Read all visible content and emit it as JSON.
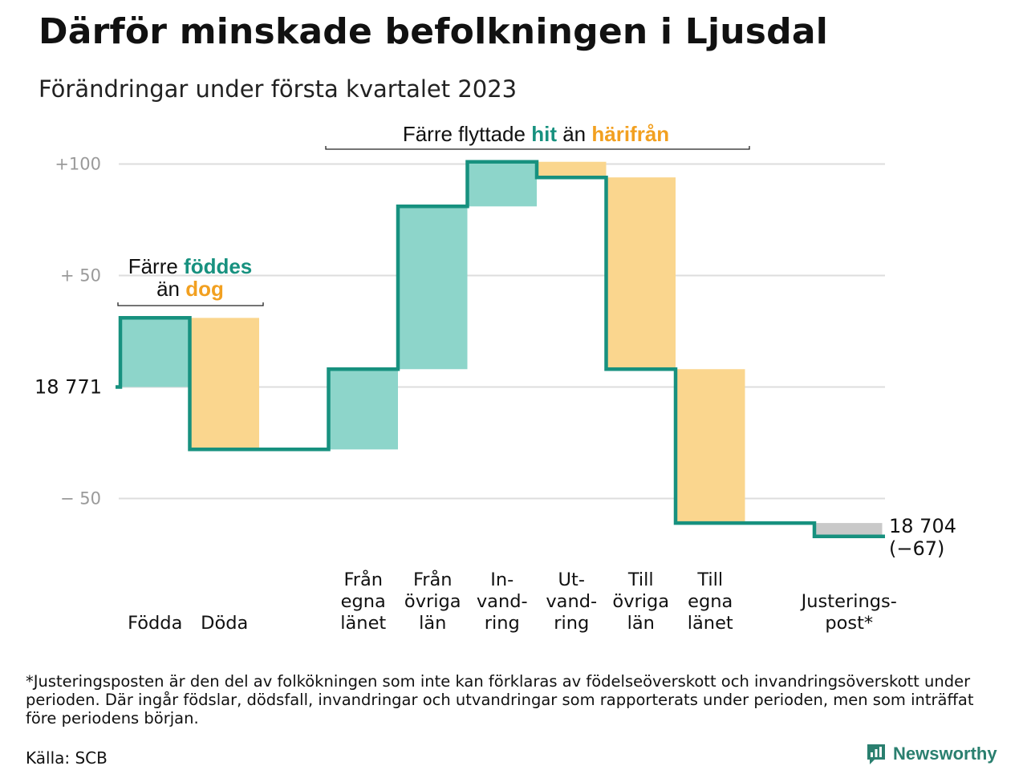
{
  "title": "Därför minskade befolkningen i Ljusdal",
  "subtitle": "Förändringar under första kvartalet 2023",
  "chart_data": {
    "type": "waterfall",
    "start_label": "18 771",
    "end_label": "18 704",
    "end_change_label": "(−67)",
    "ylim": [
      -78,
      108
    ],
    "y_ticks": [
      {
        "value": 100,
        "label": "+100"
      },
      {
        "value": 50,
        "label": "+ 50"
      },
      {
        "value": 0,
        "label": ""
      },
      {
        "value": -50,
        "label": "− 50"
      }
    ],
    "steps": [
      {
        "lines": [
          "Födda"
        ],
        "value": 31,
        "kind": "in"
      },
      {
        "lines": [
          "Döda"
        ],
        "value": -59,
        "kind": "out"
      },
      {
        "lines": [],
        "value": 0,
        "kind": "none"
      },
      {
        "lines": [
          "Från",
          "egna",
          "länet"
        ],
        "value": 36,
        "kind": "in"
      },
      {
        "lines": [
          "Från",
          "övriga",
          "län"
        ],
        "value": 73,
        "kind": "in"
      },
      {
        "lines": [
          "In-",
          "vand-",
          "ring"
        ],
        "value": 20,
        "kind": "in"
      },
      {
        "lines": [
          "Ut-",
          "vand-",
          "ring"
        ],
        "value": -7,
        "kind": "out"
      },
      {
        "lines": [
          "Till",
          "övriga",
          "län"
        ],
        "value": -86,
        "kind": "out"
      },
      {
        "lines": [
          "Till",
          "egna",
          "länet"
        ],
        "value": -69,
        "kind": "out"
      },
      {
        "lines": [],
        "value": 0,
        "kind": "none"
      },
      {
        "lines": [
          "Justerings-",
          "post*"
        ],
        "value": -6,
        "kind": "adjust"
      }
    ],
    "annotations": [
      {
        "parts": [
          {
            "text": "Färre ",
            "style": "plain"
          },
          {
            "text": "föddes",
            "style": "teal"
          }
        ],
        "parts2": [
          {
            "text": "än ",
            "style": "plain"
          },
          {
            "text": "dog",
            "style": "orange"
          }
        ]
      },
      {
        "parts": [
          {
            "text": "Färre flyttade ",
            "style": "plain"
          },
          {
            "text": "hit",
            "style": "teal"
          },
          {
            "text": " än ",
            "style": "plain"
          },
          {
            "text": "härifrån",
            "style": "orange"
          }
        ]
      }
    ],
    "colors": {
      "in": "#8dd5ca",
      "out": "#fad68e",
      "adjust": "#c9c9c9",
      "line": "#17917f",
      "grid": "#dddddd"
    }
  },
  "footnote": "*Justeringsposten är den del av folkökningen som inte kan förklaras av födelseöverskott och invandringsöverskott under perioden. Där ingår födslar, dödsfall, invandringar och utvandringar som rapporterats under perioden, men som inträffat före periodens början.",
  "source": "Källa: SCB",
  "brand": {
    "name": "Newsworthy",
    "icon": "newsworthy-logo-icon",
    "color": "#2a7f6f"
  }
}
